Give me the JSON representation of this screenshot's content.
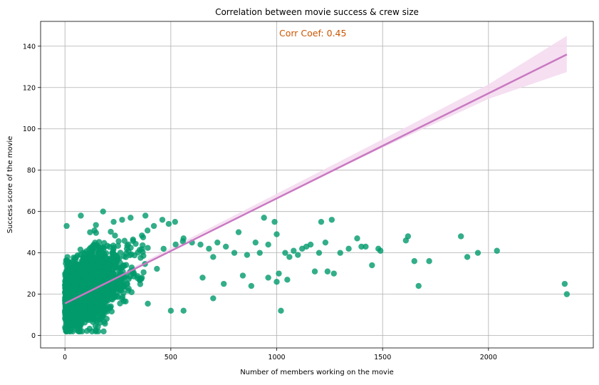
{
  "chart_data": {
    "type": "scatter",
    "title": "Correlation between movie success & crew size",
    "xlabel": "Number of members working on the movie",
    "ylabel": "Success score of the movie",
    "annotation": "Corr Coef: 0.45",
    "xlim": [
      -115,
      2495
    ],
    "ylim": [
      -6,
      152
    ],
    "x_ticks": [
      0,
      500,
      1000,
      1500,
      2000
    ],
    "x_tick_labels": [
      "0",
      "500",
      "1000",
      "1500",
      "2000"
    ],
    "y_ticks": [
      0,
      20,
      40,
      60,
      80,
      100,
      120,
      140
    ],
    "y_tick_labels": [
      "0",
      "20",
      "40",
      "60",
      "80",
      "100",
      "120",
      "140"
    ],
    "grid": true,
    "colors": {
      "points": "#009a6b",
      "regression_line": "#c978c2",
      "confidence_band": "#f3d9ef",
      "annotation": "#cc5500",
      "grid": "#b0b0b0"
    },
    "regression": {
      "x": [
        0,
        2370
      ],
      "y": [
        15.5,
        136
      ],
      "band_x": [
        0,
        500,
        1000,
        1500,
        2000,
        2370
      ],
      "band_upper": [
        16.3,
        42.4,
        68.6,
        94.9,
        121.5,
        145
      ],
      "band_lower": [
        14.7,
        41.6,
        66.8,
        90.9,
        114.5,
        127.5
      ]
    },
    "outliers": [
      [
        8,
        53
      ],
      [
        75,
        58
      ],
      [
        180,
        60
      ],
      [
        230,
        55
      ],
      [
        270,
        56
      ],
      [
        310,
        57
      ],
      [
        380,
        58
      ],
      [
        420,
        53
      ],
      [
        460,
        56
      ],
      [
        490,
        54
      ],
      [
        520,
        55
      ],
      [
        560,
        47
      ],
      [
        600,
        45
      ],
      [
        640,
        44
      ],
      [
        680,
        42
      ],
      [
        700,
        38
      ],
      [
        720,
        45
      ],
      [
        760,
        43
      ],
      [
        800,
        40
      ],
      [
        820,
        50
      ],
      [
        860,
        39
      ],
      [
        900,
        45
      ],
      [
        920,
        40
      ],
      [
        940,
        57
      ],
      [
        960,
        44
      ],
      [
        990,
        55
      ],
      [
        1000,
        49
      ],
      [
        1010,
        30
      ],
      [
        1020,
        12
      ],
      [
        1040,
        40
      ],
      [
        1060,
        38
      ],
      [
        1080,
        41
      ],
      [
        1100,
        39
      ],
      [
        1120,
        42
      ],
      [
        1140,
        43
      ],
      [
        1160,
        44
      ],
      [
        1180,
        31
      ],
      [
        1200,
        40
      ],
      [
        1210,
        55
      ],
      [
        1230,
        45
      ],
      [
        1240,
        31
      ],
      [
        1260,
        56
      ],
      [
        1270,
        30
      ],
      [
        1300,
        40
      ],
      [
        1340,
        42
      ],
      [
        1380,
        47
      ],
      [
        1400,
        43
      ],
      [
        1420,
        43
      ],
      [
        1450,
        34
      ],
      [
        1480,
        42
      ],
      [
        1490,
        41
      ],
      [
        1610,
        46
      ],
      [
        1620,
        48
      ],
      [
        1650,
        36
      ],
      [
        1670,
        24
      ],
      [
        1720,
        36
      ],
      [
        1870,
        48
      ],
      [
        1900,
        38
      ],
      [
        1950,
        40
      ],
      [
        2040,
        41
      ],
      [
        2360,
        25
      ],
      [
        2370,
        20
      ],
      [
        560,
        12
      ],
      [
        500,
        12
      ],
      [
        700,
        18
      ],
      [
        650,
        28
      ],
      [
        750,
        25
      ],
      [
        840,
        29
      ],
      [
        880,
        24
      ],
      [
        960,
        28
      ],
      [
        1000,
        26
      ],
      [
        1050,
        27
      ]
    ],
    "cluster": {
      "point_count": 2600,
      "x_range": [
        0,
        620
      ],
      "y_range": [
        2,
        60
      ],
      "description": "Dense cluster of points near origin"
    }
  }
}
